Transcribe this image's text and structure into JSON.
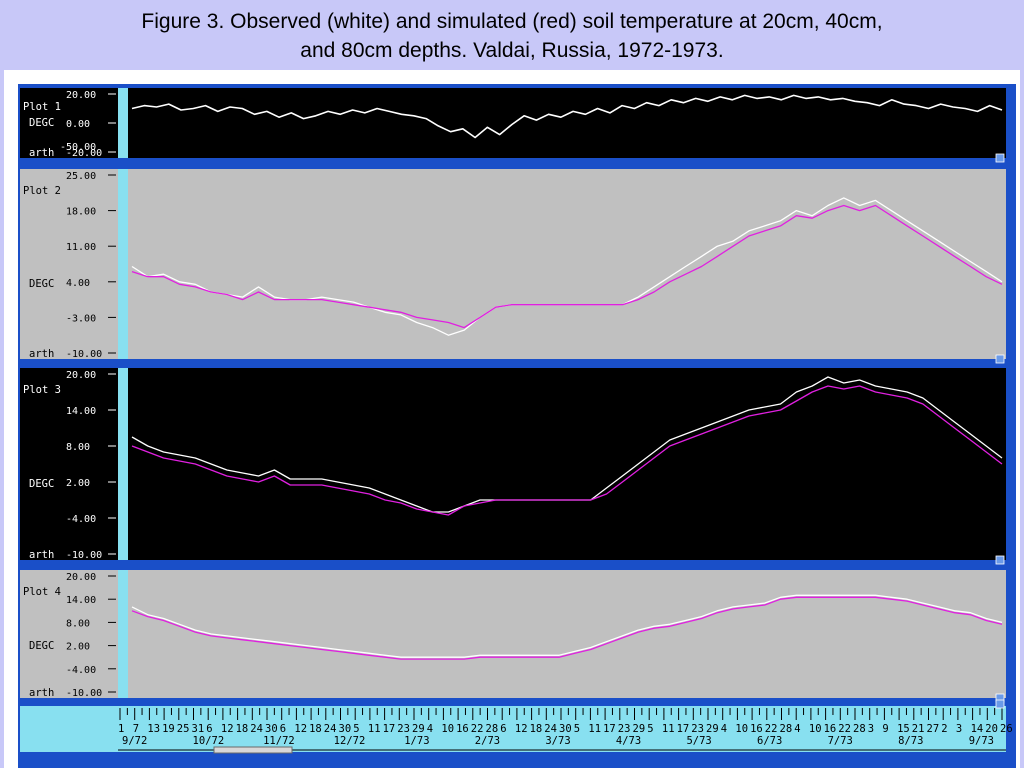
{
  "caption": {
    "line1": "Figure 3.  Observed (white) and simulated (red) soil temperature at 20cm, 40cm,",
    "line2": "and 80cm depths.  Valdai, Russia,  1972-1973."
  },
  "colors": {
    "observed": "#ffffff",
    "simulated": "#e020e0",
    "panel_dark": "#000000",
    "panel_light": "#c0c0c0",
    "frame": "#1a4fc8",
    "cyan_strip": "#88e0f0",
    "background": "#c8c8f8"
  },
  "x_axis": {
    "days": [
      "1",
      "7",
      "13",
      "19",
      "25",
      "31",
      "6",
      "12",
      "18",
      "24",
      "30",
      "6",
      "12",
      "18",
      "24",
      "30",
      "5",
      "11",
      "17",
      "23",
      "29",
      "4",
      "10",
      "16",
      "22",
      "28",
      "6",
      "12",
      "18",
      "24",
      "30",
      "5",
      "11",
      "17",
      "23",
      "29",
      "5",
      "11",
      "17",
      "23",
      "29",
      "4",
      "10",
      "16",
      "22",
      "28",
      "4",
      "10",
      "16",
      "22",
      "28",
      "3",
      "9",
      "15",
      "21",
      "27",
      "2",
      "3",
      "14",
      "20",
      "26"
    ],
    "months": [
      "9/72",
      "10/72",
      "11/72",
      "12/72",
      "1/73",
      "2/73",
      "3/73",
      "4/73",
      "5/73",
      "6/73",
      "7/73",
      "8/73",
      "9/73"
    ]
  },
  "chart_data": [
    {
      "type": "line",
      "name": "Plot 1",
      "ylabel": "DEGC",
      "footer": "arth",
      "background": "dark",
      "yticks": [
        "20.00",
        "0.00",
        "-20.00"
      ],
      "extra_tick": "-50.00",
      "ylim": [
        -20,
        20
      ],
      "series": [
        {
          "name": "observed",
          "values": [
            10,
            12,
            11,
            13,
            9,
            10,
            12,
            8,
            11,
            10,
            6,
            8,
            4,
            7,
            3,
            5,
            8,
            6,
            9,
            7,
            10,
            8,
            6,
            5,
            3,
            -2,
            -6,
            -4,
            -10,
            -3,
            -8,
            -1,
            5,
            2,
            6,
            4,
            8,
            6,
            10,
            7,
            12,
            10,
            14,
            12,
            16,
            14,
            17,
            15,
            18,
            16,
            19,
            17,
            18,
            16,
            19,
            17,
            18,
            16,
            17,
            15,
            14,
            12,
            16,
            13,
            12,
            10,
            13,
            11,
            10,
            8,
            12,
            9
          ]
        }
      ]
    },
    {
      "type": "line",
      "name": "Plot 2",
      "ylabel": "DEGC",
      "footer": "arth",
      "background": "light",
      "yticks": [
        "25.00",
        "18.00",
        "11.00",
        "4.00",
        "-3.00",
        "-10.00"
      ],
      "ylim": [
        -10,
        25
      ],
      "series": [
        {
          "name": "observed",
          "values": [
            7,
            5,
            5.5,
            4,
            3.5,
            2,
            1.5,
            1,
            3,
            1,
            0.5,
            0.5,
            1,
            0.5,
            0,
            -1,
            -2,
            -2.5,
            -4,
            -5,
            -6.5,
            -5.5,
            -3,
            -1,
            -0.5,
            -0.5,
            -0.5,
            -0.5,
            -0.5,
            -0.5,
            -0.5,
            -0.5,
            1,
            3,
            5,
            7,
            9,
            11,
            12,
            14,
            15,
            16,
            18,
            17,
            19,
            20.5,
            19,
            20,
            18,
            16,
            14,
            12,
            10,
            8,
            6,
            4
          ]
        },
        {
          "name": "simulated",
          "values": [
            6,
            5,
            5,
            3.5,
            3,
            2,
            1.5,
            0.5,
            2,
            0.5,
            0.5,
            0.5,
            0.5,
            0,
            -0.5,
            -1,
            -1.5,
            -2,
            -3,
            -3.5,
            -4,
            -5,
            -3,
            -1,
            -0.5,
            -0.5,
            -0.5,
            -0.5,
            -0.5,
            -0.5,
            -0.5,
            -0.5,
            0.5,
            2,
            4,
            5.5,
            7,
            9,
            11,
            13,
            14,
            15,
            17,
            16.5,
            18,
            19,
            18,
            19,
            17,
            15,
            13,
            11,
            9,
            7,
            5,
            3.5
          ]
        }
      ]
    },
    {
      "type": "line",
      "name": "Plot 3",
      "ylabel": "DEGC",
      "footer": "arth",
      "background": "dark",
      "yticks": [
        "20.00",
        "14.00",
        "8.00",
        "2.00",
        "-4.00",
        "-10.00"
      ],
      "ylim": [
        -10,
        20
      ],
      "series": [
        {
          "name": "observed",
          "values": [
            9.5,
            8,
            7,
            6.5,
            6,
            5,
            4,
            3.5,
            3,
            4,
            2.5,
            2.5,
            2.5,
            2,
            1.5,
            1,
            0,
            -1,
            -2,
            -3,
            -3,
            -2,
            -1,
            -1,
            -1,
            -1,
            -1,
            -1,
            -1,
            -1,
            1,
            3,
            5,
            7,
            9,
            10,
            11,
            12,
            13,
            14,
            14.5,
            15,
            17,
            18,
            19.5,
            18.5,
            19,
            18,
            17.5,
            17,
            16,
            14,
            12,
            10,
            8,
            6
          ]
        },
        {
          "name": "simulated",
          "values": [
            8,
            7,
            6,
            5.5,
            5,
            4,
            3,
            2.5,
            2,
            3,
            1.5,
            1.5,
            1.5,
            1,
            0.5,
            0,
            -1,
            -1.5,
            -2.5,
            -3,
            -3.5,
            -2,
            -1.5,
            -1,
            -1,
            -1,
            -1,
            -1,
            -1,
            -1,
            0,
            2,
            4,
            6,
            8,
            9,
            10,
            11,
            12,
            13,
            13.5,
            14,
            15.5,
            17,
            18,
            17.5,
            18,
            17,
            16.5,
            16,
            15,
            13,
            11,
            9,
            7,
            5
          ]
        }
      ]
    },
    {
      "type": "line",
      "name": "Plot 4",
      "ylabel": "DEGC",
      "footer": "arth",
      "background": "light",
      "yticks": [
        "20.00",
        "14.00",
        "8.00",
        "2.00",
        "-4.00",
        "-10.00"
      ],
      "ylim": [
        -10,
        20
      ],
      "series": [
        {
          "name": "observed",
          "values": [
            12,
            10,
            9,
            7.5,
            6,
            5,
            4.5,
            4,
            3.5,
            3,
            2.5,
            2,
            1.5,
            1,
            0.5,
            0,
            -0.5,
            -1,
            -1,
            -1,
            -1,
            -1,
            -0.5,
            -0.5,
            -0.5,
            -0.5,
            -0.5,
            -0.5,
            0.5,
            1.5,
            3,
            4.5,
            6,
            7,
            7.5,
            8.5,
            9.5,
            11,
            12,
            12.5,
            13,
            14.5,
            15,
            15,
            15,
            15,
            15,
            15,
            14.5,
            14,
            13,
            12,
            11,
            10.5,
            9,
            8
          ]
        },
        {
          "name": "simulated",
          "values": [
            11,
            9.5,
            8.5,
            7,
            5.5,
            4.5,
            4,
            3.5,
            3,
            2.5,
            2,
            1.5,
            1,
            0.5,
            0,
            -0.5,
            -1,
            -1.5,
            -1.5,
            -1.5,
            -1.5,
            -1.5,
            -1,
            -1,
            -1,
            -1,
            -1,
            -1,
            0,
            1,
            2.5,
            4,
            5.5,
            6.5,
            7,
            8,
            9,
            10.5,
            11.5,
            12,
            12.5,
            14,
            14.5,
            14.5,
            14.5,
            14.5,
            14.5,
            14.5,
            14,
            13.5,
            12.5,
            11.5,
            10.5,
            10,
            8.5,
            7.5
          ]
        }
      ]
    }
  ]
}
